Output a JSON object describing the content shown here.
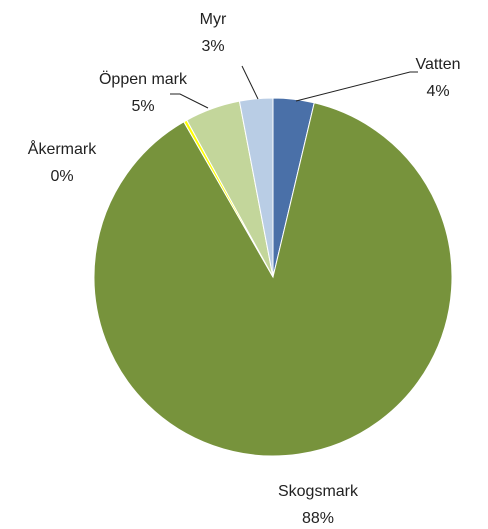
{
  "chart_data": {
    "type": "pie",
    "categories": [
      "Vatten",
      "Skogsmark",
      "Åkermark",
      "Öppen mark",
      "Myr"
    ],
    "values": [
      3.7,
      88.0,
      0.3,
      5.0,
      3.0
    ],
    "value_labels": [
      "4%",
      "88%",
      "0%",
      "5%",
      "3%"
    ],
    "colors": [
      "#4a70a8",
      "#77933c",
      "#ffff00",
      "#c3d69b",
      "#b9cde5"
    ]
  }
}
